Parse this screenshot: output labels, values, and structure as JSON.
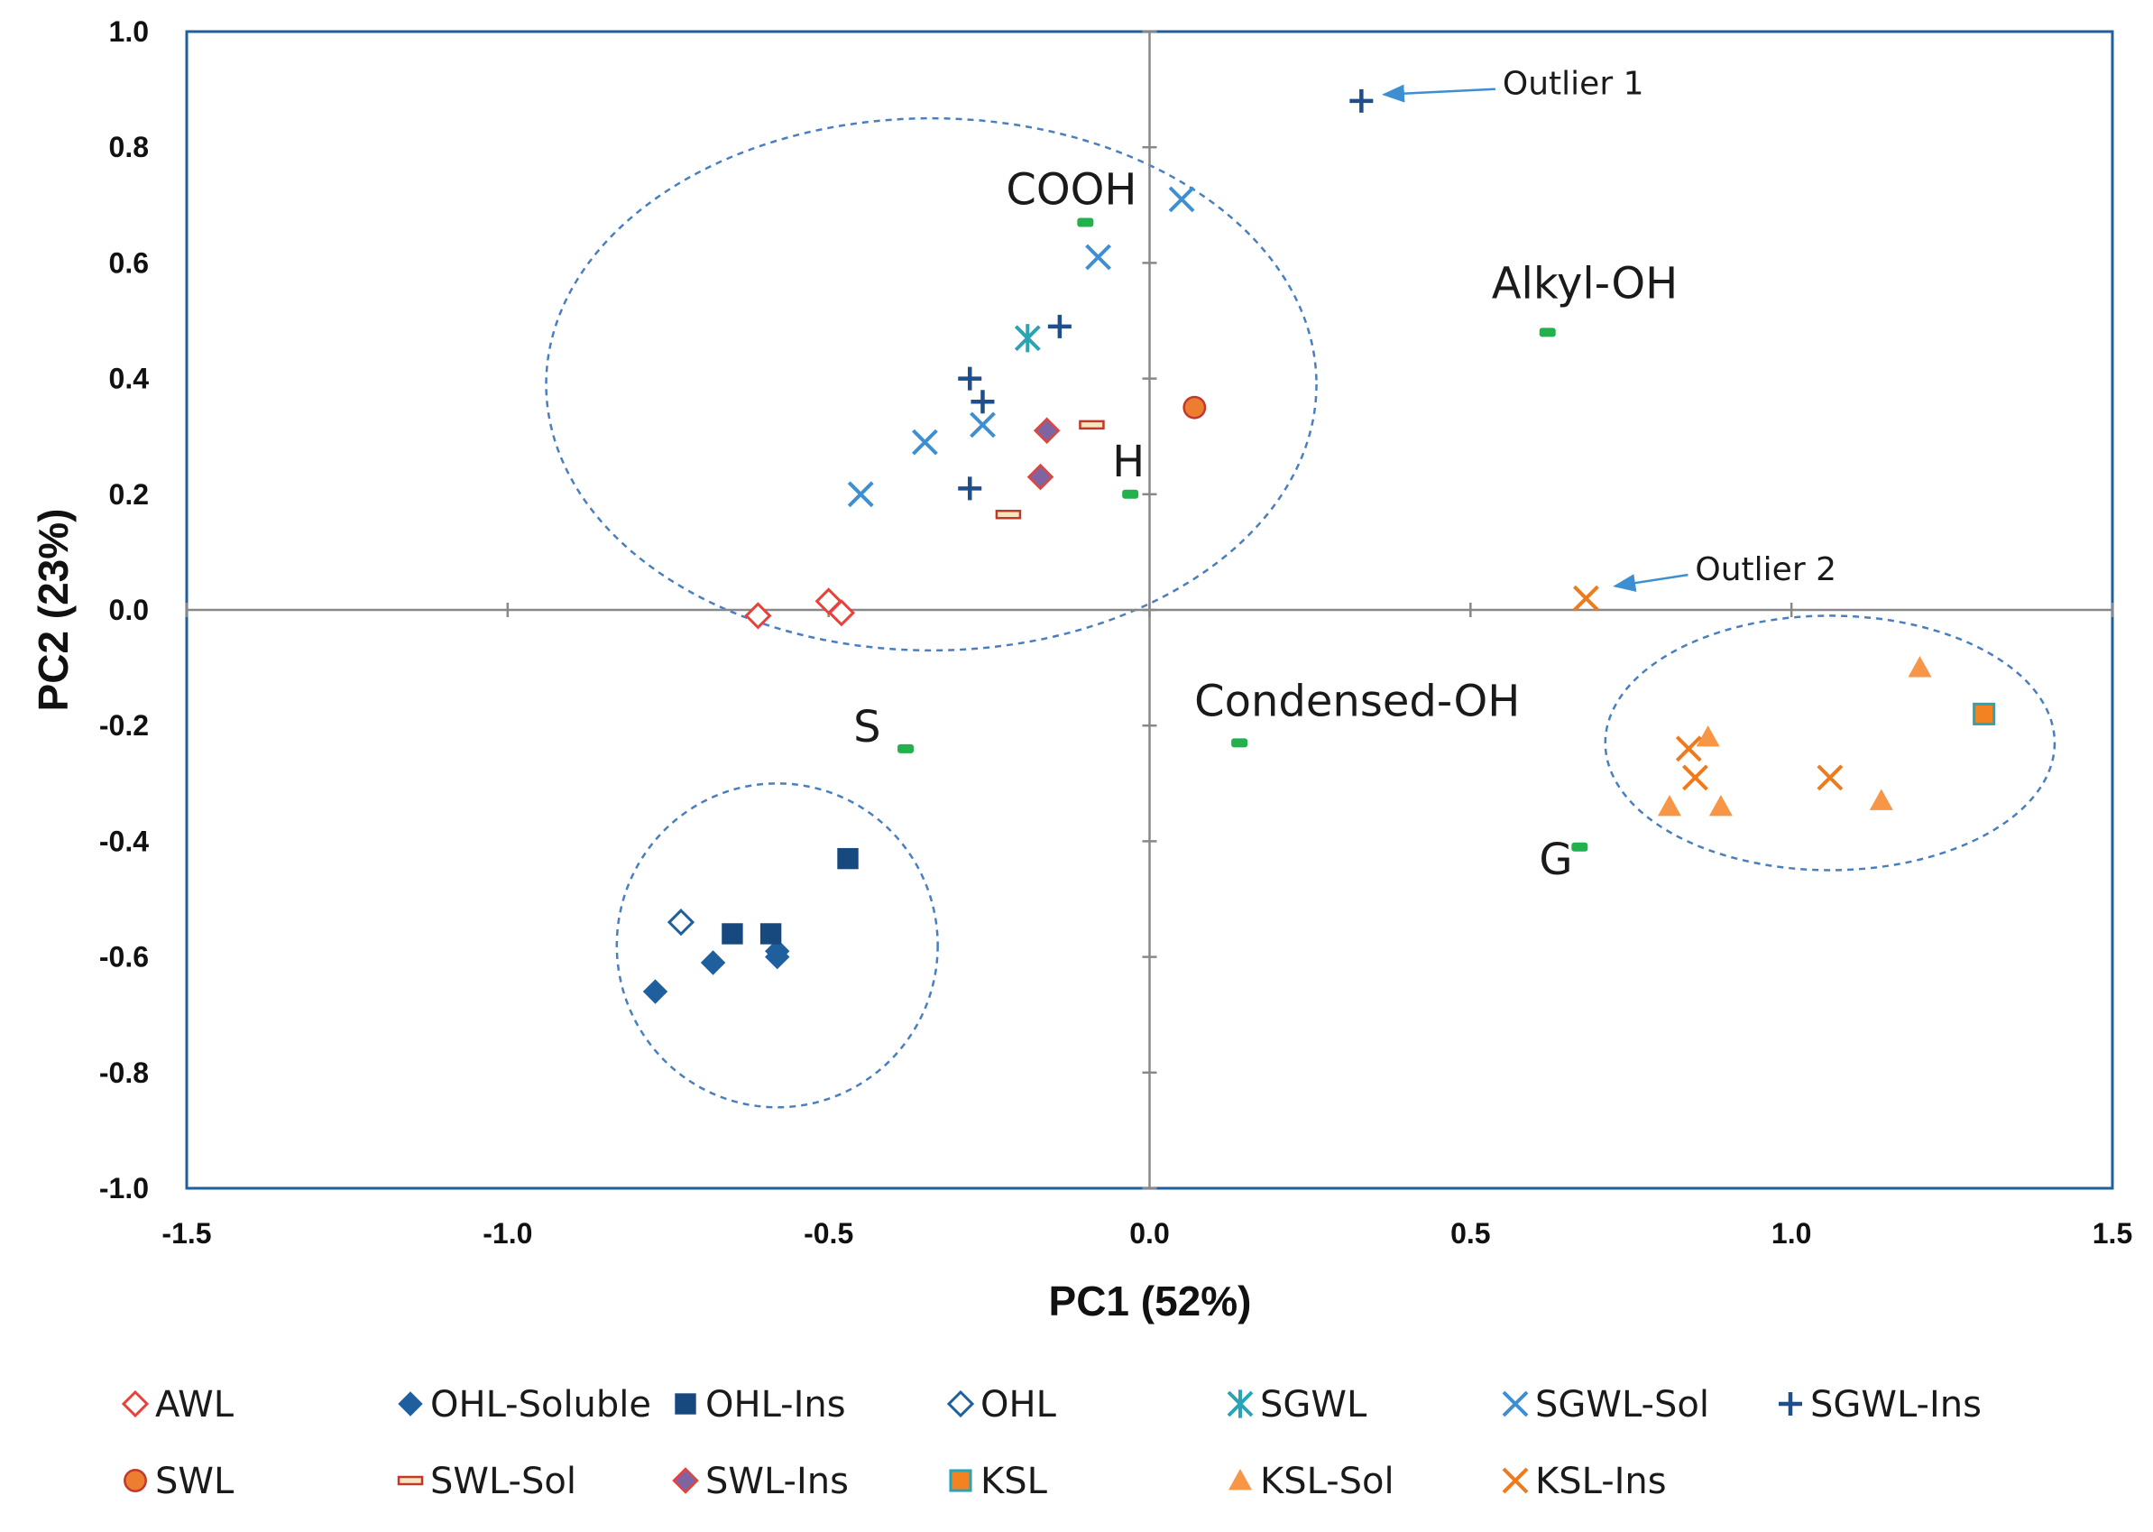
{
  "chart_data": {
    "type": "scatter",
    "xlabel": "PC1 (52%)",
    "ylabel": "PC2 (23%)",
    "xlim": [
      -1.5,
      1.5
    ],
    "ylim": [
      -1.0,
      1.0
    ],
    "x_ticks": [
      -1.5,
      -1.0,
      -0.5,
      0.0,
      0.5,
      1.0,
      1.5
    ],
    "y_ticks": [
      -1.0,
      -0.8,
      -0.6,
      -0.4,
      -0.2,
      0.0,
      0.2,
      0.4,
      0.6,
      0.8,
      1.0
    ],
    "x_tick_labels": [
      "-1.5",
      "-1.0",
      "-0.5",
      "0.0",
      "0.5",
      "1.0",
      "1.5"
    ],
    "y_tick_labels": [
      "-1.0",
      "-0.8",
      "-0.6",
      "-0.4",
      "-0.2",
      "0.0",
      "0.2",
      "0.4",
      "0.6",
      "0.8",
      "1.0"
    ],
    "series": [
      {
        "name": "AWL",
        "marker": "diamond-open",
        "color": "#e8413a",
        "points": [
          [
            -0.61,
            -0.01
          ],
          [
            -0.5,
            0.015
          ],
          [
            -0.48,
            -0.005
          ]
        ]
      },
      {
        "name": "OHL-Soluble",
        "marker": "diamond",
        "color": "#1f5f9e",
        "points": [
          [
            -0.77,
            -0.66
          ],
          [
            -0.68,
            -0.61
          ],
          [
            -0.58,
            -0.6
          ],
          [
            -0.58,
            -0.59
          ]
        ]
      },
      {
        "name": "OHL-Ins",
        "marker": "square",
        "color": "#17497f",
        "points": [
          [
            -0.65,
            -0.56
          ],
          [
            -0.59,
            -0.56
          ],
          [
            -0.47,
            -0.43
          ]
        ]
      },
      {
        "name": "OHL",
        "marker": "diamond-open",
        "color": "#1f5f9e",
        "points": [
          [
            -0.73,
            -0.54
          ]
        ]
      },
      {
        "name": "SGWL",
        "marker": "asterisk",
        "color": "#2aa3b5",
        "points": [
          [
            -0.19,
            0.47
          ]
        ]
      },
      {
        "name": "SGWL-Sol",
        "marker": "x",
        "color": "#3d8fd1",
        "points": [
          [
            0.05,
            0.71
          ],
          [
            -0.08,
            0.61
          ],
          [
            -0.35,
            0.29
          ],
          [
            -0.26,
            0.32
          ],
          [
            -0.45,
            0.2
          ]
        ]
      },
      {
        "name": "SGWL-Ins",
        "marker": "plus",
        "color": "#1f4e8c",
        "points": [
          [
            0.33,
            0.88
          ],
          [
            -0.14,
            0.49
          ],
          [
            -0.28,
            0.4
          ],
          [
            -0.26,
            0.36
          ],
          [
            -0.28,
            0.21
          ]
        ]
      },
      {
        "name": "SWL",
        "marker": "circle",
        "color": "#ed7d31",
        "points": [
          [
            0.07,
            0.35
          ]
        ]
      },
      {
        "name": "SWL-Sol",
        "marker": "dash",
        "color": "#c0392b",
        "points": [
          [
            -0.09,
            0.32
          ],
          [
            -0.22,
            0.165
          ]
        ]
      },
      {
        "name": "SWL-Ins",
        "marker": "diamond-purple",
        "color": "#8064a2",
        "points": [
          [
            -0.16,
            0.31
          ],
          [
            -0.17,
            0.23
          ]
        ]
      },
      {
        "name": "KSL",
        "marker": "square-orange",
        "color": "#f58220",
        "points": [
          [
            1.3,
            -0.18
          ]
        ]
      },
      {
        "name": "KSL-Sol",
        "marker": "triangle",
        "color": "#f79646",
        "points": [
          [
            1.2,
            -0.1
          ],
          [
            0.87,
            -0.22
          ],
          [
            0.81,
            -0.34
          ],
          [
            0.89,
            -0.34
          ],
          [
            1.14,
            -0.33
          ]
        ]
      },
      {
        "name": "KSL-Ins",
        "marker": "x",
        "color": "#f07a1a",
        "points": [
          [
            0.68,
            0.02
          ],
          [
            0.84,
            -0.24
          ],
          [
            0.85,
            -0.29
          ],
          [
            1.06,
            -0.29
          ]
        ]
      }
    ],
    "loadings": [
      {
        "name": "COOH",
        "x": -0.1,
        "y": 0.67
      },
      {
        "name": "Alkyl-OH",
        "x": 0.62,
        "y": 0.48
      },
      {
        "name": "H",
        "x": -0.03,
        "y": 0.2
      },
      {
        "name": "S",
        "x": -0.38,
        "y": -0.24
      },
      {
        "name": "Condensed-OH",
        "x": 0.14,
        "y": -0.23
      },
      {
        "name": "G",
        "x": 0.67,
        "y": -0.41
      }
    ],
    "annotations": [
      {
        "text": "Outlier 1",
        "target": [
          0.34,
          0.885
        ],
        "text_at": [
          0.55,
          0.91
        ]
      },
      {
        "text": "Outlier 2",
        "target": [
          0.7,
          0.035
        ],
        "text_at": [
          0.85,
          0.07
        ]
      }
    ],
    "clusters": [
      {
        "cx": -0.34,
        "cy": 0.39,
        "rx": 0.6,
        "ry": 0.46
      },
      {
        "cx": -0.58,
        "cy": -0.58,
        "rx": 0.25,
        "ry": 0.28
      },
      {
        "cx": 1.06,
        "cy": -0.23,
        "rx": 0.35,
        "ry": 0.22
      }
    ],
    "legend": {
      "placement": "bottom",
      "rows": [
        [
          "AWL",
          "OHL-Soluble",
          "OHL-Ins",
          "OHL",
          "SGWL",
          "SGWL-Sol",
          "SGWL-Ins"
        ],
        [
          "SWL",
          "SWL-Sol",
          "SWL-Ins",
          "KSL",
          "KSL-Sol",
          "KSL-Ins"
        ]
      ]
    }
  }
}
